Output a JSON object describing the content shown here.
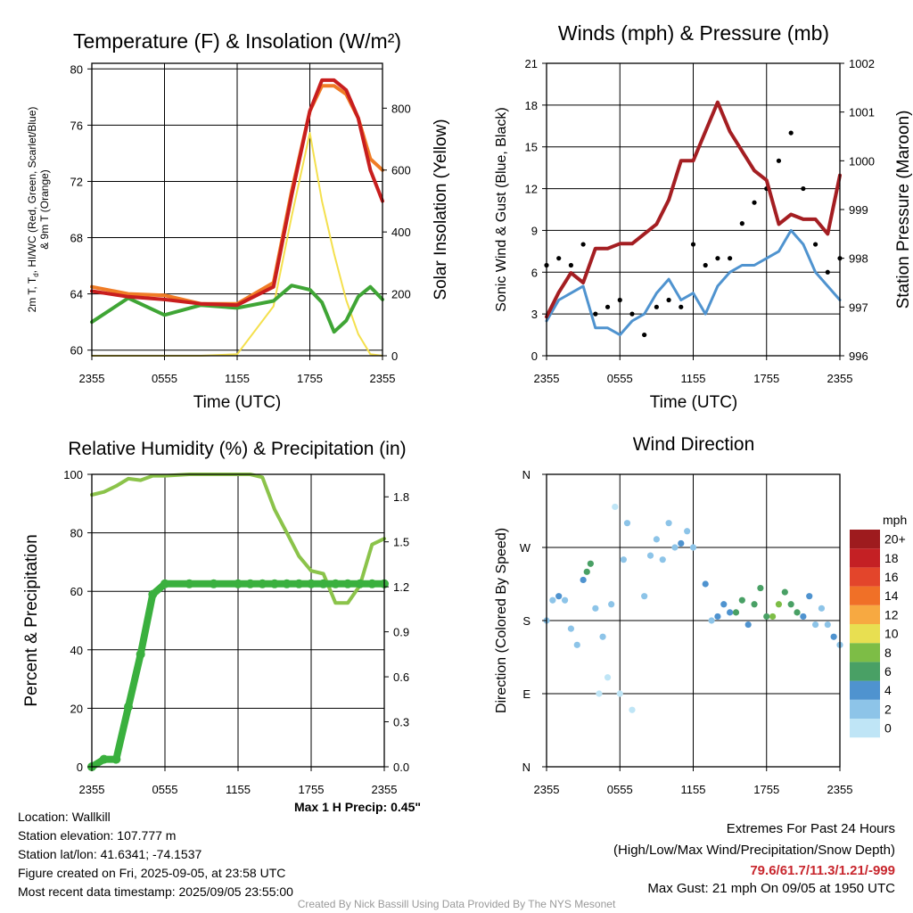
{
  "chart_data": [
    {
      "type": "line",
      "title": "Temperature (F) & Insolation (W/m²)",
      "ylabel": "2m T, T_d, HI/WC (Red, Green, Scarlet/Blue) & 9m T (Orange)",
      "ylabel_line1": "2m T, T",
      "ylabel_sub": "d",
      "ylabel_line1_rest": ", HI/WC (Red, Green, Scarlet/Blue)",
      "ylabel_line2": "& 9m T (Orange)",
      "y2label": "Solar Insolation (Yellow)",
      "xlabel": "Time (UTC)",
      "x_ticks": [
        "2355",
        "0555",
        "1155",
        "1755",
        "2355"
      ],
      "y_ticks": [
        60,
        64,
        68,
        72,
        76,
        80
      ],
      "y2_ticks": [
        0,
        200,
        400,
        600,
        800
      ],
      "ylim": [
        59.6,
        80.4
      ],
      "y2lim": [
        0,
        945
      ],
      "x_hours": [
        0,
        3,
        6,
        9,
        12,
        15,
        16.5,
        18,
        19,
        20,
        21,
        22,
        23,
        24
      ],
      "series": [
        {
          "name": "2m T",
          "color": "#c81e1e",
          "values": [
            64.2,
            63.8,
            63.6,
            63.3,
            63.2,
            64.5,
            71,
            77,
            79.2,
            79.2,
            78.5,
            76.5,
            72.8,
            70.6
          ]
        },
        {
          "name": "9m T",
          "color": "#f07c26",
          "values": [
            64.5,
            64.0,
            63.9,
            63.3,
            63.3,
            64.8,
            71.3,
            77,
            78.8,
            78.8,
            78.2,
            76.5,
            73.6,
            72.8
          ]
        },
        {
          "name": "T_d",
          "color": "#3fa535",
          "values": [
            62.0,
            63.7,
            62.5,
            63.2,
            63.0,
            63.5,
            64.6,
            64.3,
            63.4,
            61.3,
            62.1,
            63.8,
            64.5,
            63.6
          ]
        },
        {
          "name": "Solar Insolation",
          "color": "#f4e04d",
          "axis": "y2",
          "values": [
            0,
            0,
            0,
            0,
            5,
            160,
            450,
            720,
            500,
            330,
            180,
            70,
            5,
            0
          ]
        }
      ]
    },
    {
      "type": "line",
      "title": "Winds (mph) & Pressure (mb)",
      "ylabel": "Sonic Wind & Gust (Blue, Black)",
      "y2label": "Station Pressure (Maroon)",
      "xlabel": "Time (UTC)",
      "x_ticks": [
        "2355",
        "0555",
        "1155",
        "1755",
        "2355"
      ],
      "y_ticks": [
        0,
        3,
        6,
        9,
        12,
        15,
        18,
        21
      ],
      "y2_ticks": [
        996,
        997,
        998,
        999,
        1000,
        1001,
        1002
      ],
      "ylim": [
        0,
        21
      ],
      "y2lim": [
        996,
        1002
      ],
      "x_hours": [
        0,
        1,
        2,
        3,
        4,
        5,
        6,
        7,
        8,
        9,
        10,
        11,
        12,
        13,
        14,
        15,
        16,
        17,
        18,
        19,
        20,
        21,
        22,
        23,
        24
      ],
      "series": [
        {
          "name": "Sonic Wind",
          "color": "#4f93cf",
          "values": [
            2.5,
            4,
            4.5,
            5,
            2,
            2,
            1.5,
            2.5,
            3,
            4.5,
            5.5,
            4,
            4.5,
            3,
            5,
            6,
            6.5,
            6.5,
            7,
            7.5,
            9,
            8,
            6,
            5,
            4
          ]
        },
        {
          "name": "Gust",
          "color": "#000000",
          "values": [
            6.5,
            7,
            6.5,
            8,
            3,
            3.5,
            4,
            3,
            1.5,
            3.5,
            4,
            3.5,
            8,
            6.5,
            7,
            7,
            9.5,
            11,
            12,
            14,
            16,
            12,
            8,
            6,
            7
          ]
        },
        {
          "name": "Station Pressure",
          "color": "#a41e22",
          "values": [
            996.8,
            997.3,
            997.7,
            997.5,
            998.2,
            998.2,
            998.3,
            998.3,
            998.5,
            998.7,
            999.2,
            1000.0,
            1000.0,
            1000.6,
            1001.2,
            1000.6,
            1000.2,
            999.8,
            999.6,
            998.7,
            998.9,
            998.8,
            998.8,
            998.5,
            999.7
          ]
        }
      ]
    },
    {
      "type": "line",
      "title": "Relative Humidity (%) & Precipitation (in)",
      "ylabel": "Percent & Precipitation",
      "x_ticks": [
        "2355",
        "0555",
        "1155",
        "1755",
        "2355"
      ],
      "y_ticks": [
        0,
        20,
        40,
        60,
        80,
        100
      ],
      "y2_ticks": [
        "0.0",
        "0.3",
        "0.6",
        "0.9",
        "1.2",
        "1.5",
        "1.8"
      ],
      "ylim": [
        0,
        100
      ],
      "y2lim": [
        0,
        1.95
      ],
      "annotation": "Max 1 H Precip: 0.45\"",
      "annotation_color": "#2a9d2a",
      "x_hours": [
        0,
        1,
        2,
        3,
        4,
        5,
        6,
        8,
        10,
        12,
        13,
        14,
        15,
        16,
        17,
        18,
        19,
        20,
        21,
        22,
        23,
        24
      ],
      "series": [
        {
          "name": "Relative Humidity",
          "color": "#8bc34a",
          "values": [
            93,
            94,
            96,
            98.5,
            98,
            99.5,
            99.5,
            100,
            100,
            100,
            100,
            99,
            88,
            80,
            72,
            67,
            66,
            56,
            56,
            62,
            76,
            78
          ]
        },
        {
          "name": "Accumulated Precipitation",
          "color": "#3ab03e",
          "values": [
            0,
            0.05,
            0.05,
            0.4,
            0.75,
            1.15,
            1.22,
            1.22,
            1.22,
            1.22,
            1.22,
            1.22,
            1.22,
            1.22,
            1.22,
            1.22,
            1.22,
            1.22,
            1.22,
            1.22,
            1.22,
            1.22
          ]
        }
      ]
    },
    {
      "type": "scatter",
      "title": "Wind Direction",
      "ylabel": "Direction (Colored By Speed)",
      "x_ticks": [
        "2355",
        "0555",
        "1155",
        "1755",
        "2355"
      ],
      "y_ticks": [
        "N",
        "E",
        "S",
        "W",
        "N"
      ],
      "ylim": [
        0,
        360
      ],
      "legend_title": "mph",
      "legend_labels": [
        "0",
        "2",
        "4",
        "6",
        "8",
        "10",
        "12",
        "14",
        "16",
        "18",
        "20+"
      ],
      "legend_colors": [
        "#bfe5f6",
        "#8dc4e8",
        "#4f93cf",
        "#49a065",
        "#7dbd46",
        "#e8df51",
        "#f7a941",
        "#f07027",
        "#e3452b",
        "#c42024",
        "#9e1b1e"
      ],
      "x_hours": [
        0,
        0.5,
        1,
        1.5,
        2,
        2.5,
        3,
        3.3,
        3.6,
        4,
        4.3,
        4.6,
        5,
        5.3,
        5.6,
        6,
        6.3,
        6.6,
        7,
        8,
        8.5,
        9,
        9.5,
        10,
        10.5,
        11,
        11.5,
        12,
        13,
        13.5,
        14,
        14.5,
        15,
        15.5,
        16,
        16.5,
        17,
        17.5,
        18,
        18.5,
        19,
        19.5,
        20,
        20.5,
        21,
        21.5,
        22,
        22.5,
        23,
        23.5,
        24
      ],
      "values": [
        180,
        205,
        210,
        205,
        170,
        150,
        230,
        240,
        250,
        195,
        90,
        160,
        110,
        200,
        320,
        90,
        255,
        300,
        70,
        210,
        260,
        280,
        255,
        300,
        270,
        275,
        290,
        270,
        225,
        180,
        185,
        200,
        190,
        190,
        205,
        175,
        200,
        220,
        185,
        185,
        200,
        215,
        200,
        190,
        185,
        210,
        175,
        195,
        175,
        160,
        150
      ],
      "speeds": [
        3,
        3,
        4,
        3,
        3,
        3,
        5,
        7,
        6,
        3,
        1,
        2,
        1,
        2,
        1,
        1,
        2,
        2,
        1,
        2,
        3,
        3,
        2,
        2,
        3,
        4,
        2,
        3,
        4,
        3,
        4,
        5,
        5,
        6,
        7,
        5,
        6,
        7,
        6,
        8,
        9,
        7,
        6,
        7,
        4,
        4,
        3,
        3,
        3,
        4,
        3
      ]
    }
  ],
  "info": {
    "location": "Location: Wallkill",
    "elevation": "Station elevation: 107.777 m",
    "latlon": "Station lat/lon: 41.6341; -74.1537",
    "created": "Figure created on Fri, 2025-09-05, at 23:58 UTC",
    "recent": "Most recent data timestamp: 2025/09/05 23:55:00"
  },
  "extremes": {
    "title": "Extremes For Past 24 Hours",
    "subtitle": "(High/Low/Max Wind/Precipitation/Snow Depth)",
    "values": "79.6/61.7/11.3/1.21/-999",
    "values_color": "#c8262d",
    "gust": "Max Gust: 21 mph On 09/05 at 1950 UTC"
  },
  "credit": "Created By Nick Bassill Using Data Provided By The NYS Mesonet"
}
